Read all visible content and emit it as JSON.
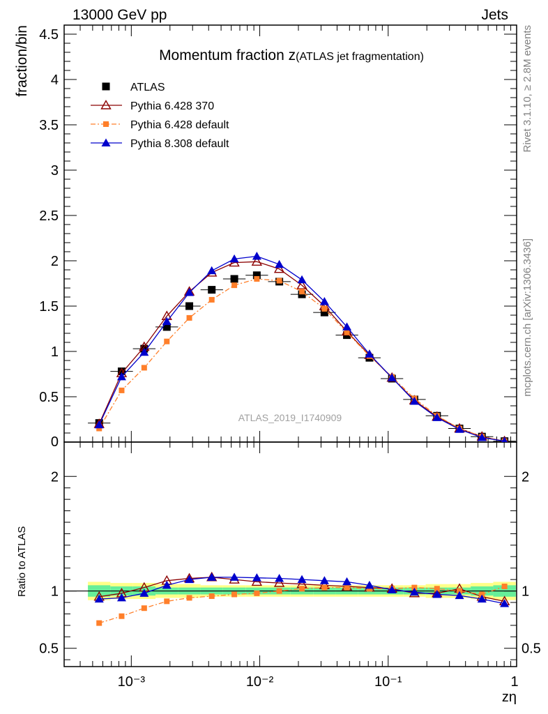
{
  "header": {
    "left": "13000 GeV pp",
    "right": "Jets"
  },
  "title": {
    "main": "Momentum fraction z",
    "sub": "(ATLAS jet fragmentation)"
  },
  "side_labels": {
    "rivet": "Rivet 3.1.10, ≥ 2.8M events",
    "mcplots": "mcplots.cern.ch [arXiv:1306.3436]"
  },
  "analysis_tag": "ATLAS_2019_I1740909",
  "colors": {
    "atlas": "#000000",
    "py6_370": "#8b0000",
    "py6_default": "#ff7f2a",
    "py8_default": "#0000cc",
    "band_inner": "#66ee99",
    "band_outer": "#ffff88"
  },
  "chart_data": [
    {
      "type": "scatter",
      "panel": "main",
      "ylabel": "fraction/bin",
      "xscale": "log",
      "xlim": [
        0.0003,
        1
      ],
      "ylim": [
        0,
        4.6
      ],
      "yticks": [
        "0",
        "0.5",
        "1",
        "1.5",
        "2",
        "2.5",
        "3",
        "3.5",
        "4",
        "4.5"
      ],
      "x": [
        0.000562,
        0.000841,
        0.00126,
        0.00189,
        0.00283,
        0.00423,
        0.00634,
        0.00949,
        0.0142,
        0.0213,
        0.0319,
        0.0477,
        0.0715,
        0.107,
        0.16,
        0.24,
        0.359,
        0.537,
        0.805
      ],
      "series": [
        {
          "name": "ATLAS",
          "marker": "square",
          "values": [
            0.21,
            0.78,
            1.03,
            1.27,
            1.5,
            1.68,
            1.8,
            1.84,
            1.77,
            1.63,
            1.43,
            1.18,
            0.93,
            0.7,
            0.47,
            0.29,
            0.15,
            0.06,
            0.01
          ]
        },
        {
          "name": "Pythia 6.428 370",
          "marker": "open-triangle",
          "values": [
            0.2,
            0.76,
            1.05,
            1.39,
            1.66,
            1.87,
            1.98,
            1.99,
            1.91,
            1.73,
            1.5,
            1.22,
            0.96,
            0.71,
            0.46,
            0.28,
            0.15,
            0.06,
            0.01
          ]
        },
        {
          "name": "Pythia 6.428 default",
          "marker": "small-square",
          "values": [
            0.15,
            0.57,
            0.82,
            1.11,
            1.37,
            1.57,
            1.73,
            1.8,
            1.78,
            1.66,
            1.47,
            1.21,
            0.95,
            0.72,
            0.48,
            0.29,
            0.15,
            0.06,
            0.01
          ]
        },
        {
          "name": "Pythia 8.308 default",
          "marker": "filled-triangle",
          "values": [
            0.19,
            0.72,
            0.99,
            1.33,
            1.65,
            1.89,
            2.02,
            2.05,
            1.96,
            1.79,
            1.55,
            1.27,
            0.97,
            0.71,
            0.45,
            0.27,
            0.14,
            0.05,
            0.01
          ]
        }
      ]
    },
    {
      "type": "scatter",
      "panel": "ratio",
      "ylabel": "Ratio to ATLAS",
      "xlabel": "zη",
      "xscale": "log",
      "xlim": [
        0.0003,
        1
      ],
      "ylim": [
        0.34,
        2.3
      ],
      "yticks": [
        "0.5",
        "1",
        "2"
      ],
      "xticks": [
        "10⁻³",
        "10⁻²",
        "10⁻¹",
        "1"
      ],
      "x": [
        0.000562,
        0.000841,
        0.00126,
        0.00189,
        0.00283,
        0.00423,
        0.00634,
        0.00949,
        0.0142,
        0.0213,
        0.0319,
        0.0477,
        0.0715,
        0.107,
        0.16,
        0.24,
        0.359,
        0.537,
        0.805
      ],
      "band_inner": [
        0.05,
        0.04,
        0.04,
        0.03,
        0.03,
        0.03,
        0.03,
        0.03,
        0.03,
        0.03,
        0.03,
        0.03,
        0.03,
        0.03,
        0.03,
        0.03,
        0.03,
        0.04,
        0.05
      ],
      "band_outer": [
        0.08,
        0.07,
        0.07,
        0.06,
        0.06,
        0.05,
        0.05,
        0.05,
        0.05,
        0.05,
        0.05,
        0.05,
        0.05,
        0.05,
        0.05,
        0.06,
        0.06,
        0.07,
        0.08
      ],
      "series": [
        {
          "name": "Pythia 6.428 370",
          "marker": "open-triangle",
          "values": [
            0.95,
            0.98,
            1.03,
            1.09,
            1.11,
            1.12,
            1.1,
            1.08,
            1.07,
            1.06,
            1.05,
            1.04,
            1.03,
            1.02,
            0.98,
            0.98,
            1.02,
            0.95,
            0.91
          ]
        },
        {
          "name": "Pythia 6.428 default",
          "marker": "small-square",
          "values": [
            0.72,
            0.78,
            0.85,
            0.91,
            0.94,
            0.955,
            0.97,
            0.98,
            1.0,
            1.02,
            1.03,
            1.03,
            1.02,
            1.02,
            1.03,
            1.02,
            1.0,
            0.97,
            1.04
          ]
        },
        {
          "name": "Pythia 8.308 default",
          "marker": "filled-triangle",
          "values": [
            0.93,
            0.94,
            0.98,
            1.05,
            1.1,
            1.12,
            1.12,
            1.115,
            1.11,
            1.1,
            1.09,
            1.08,
            1.05,
            1.01,
            0.99,
            0.97,
            0.96,
            0.93,
            0.89
          ]
        }
      ]
    }
  ]
}
